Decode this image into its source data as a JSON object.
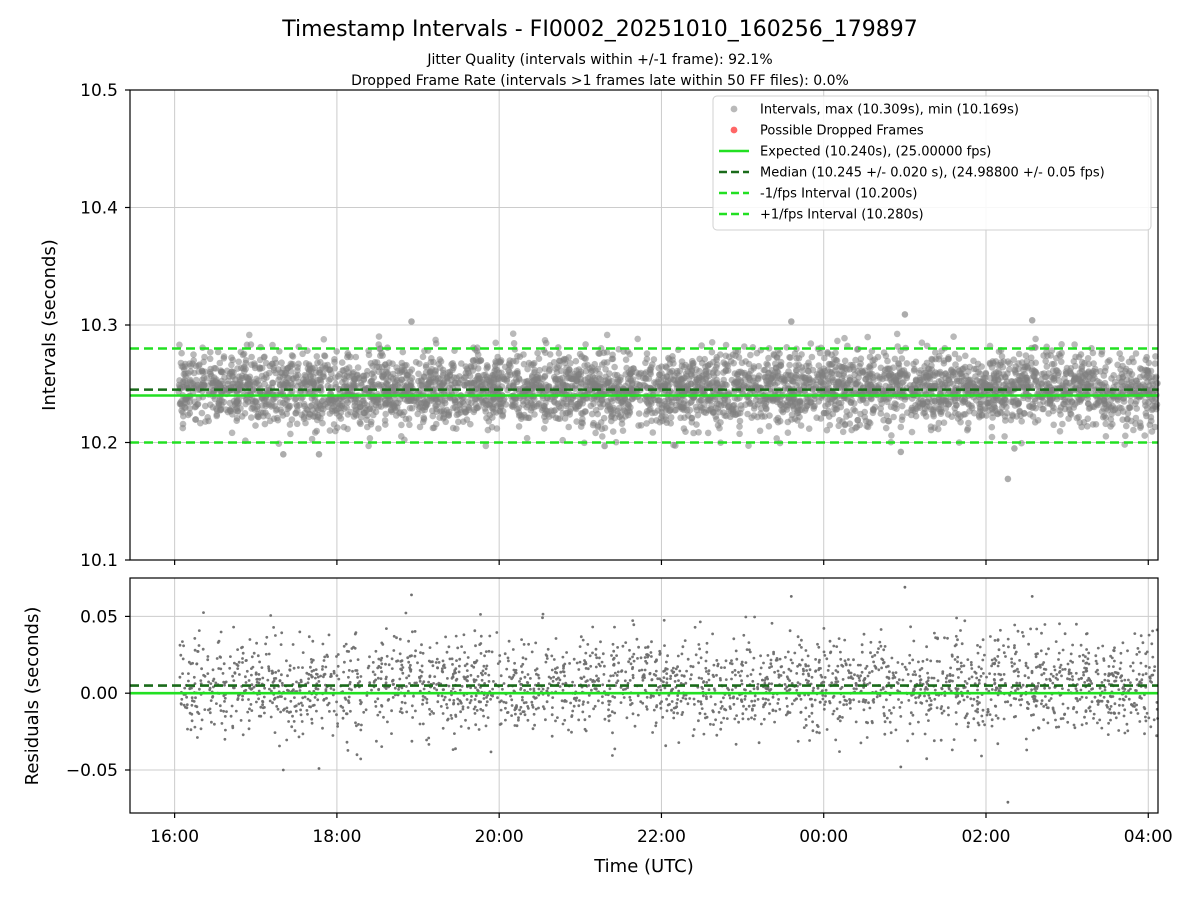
{
  "figure": {
    "title": "Timestamp Intervals - FI0002_20251010_160256_179897",
    "subtitle_1": "Jitter Quality (intervals within +/-1 frame): 92.1%",
    "subtitle_2": "Dropped Frame Rate (intervals >1 frames late within 50 FF files): 0.0%"
  },
  "colors": {
    "points_top": "#808080",
    "points_bottom": "#6e6e6e",
    "dropped": "#ff6666",
    "expected": "#22e022",
    "median": "#1a6b1a",
    "fps_bounds": "#22e022",
    "grid": "#cccccc",
    "axis": "#000000"
  },
  "chart_data": [
    {
      "id": "intervals",
      "type": "scatter",
      "xlabel": "",
      "ylabel": "Intervals (seconds)",
      "xlim": [
        15.45,
        28.12
      ],
      "ylim": [
        10.1,
        10.5
      ],
      "x_tick_values": [
        16,
        18,
        20,
        22,
        24,
        26,
        28
      ],
      "x_tick_labels": [
        "",
        "",
        "",
        "",
        "",
        "",
        ""
      ],
      "y_tick_values": [
        10.1,
        10.2,
        10.3,
        10.4,
        10.5
      ],
      "y_tick_labels": [
        "10.1",
        "10.2",
        "10.3",
        "10.4",
        "10.5"
      ],
      "grid": true,
      "series_stats": {
        "count": 4200,
        "x_start": 16.05,
        "x_end": 28.12,
        "center": 10.245,
        "spread": 0.02,
        "max": 10.309,
        "min": 10.169
      },
      "outliers": [
        {
          "x": 17.34,
          "y": 10.19
        },
        {
          "x": 17.78,
          "y": 10.19
        },
        {
          "x": 18.92,
          "y": 10.303
        },
        {
          "x": 25.0,
          "y": 10.309
        },
        {
          "x": 24.95,
          "y": 10.192
        },
        {
          "x": 26.27,
          "y": 10.169
        },
        {
          "x": 26.57,
          "y": 10.304
        },
        {
          "x": 26.35,
          "y": 10.195
        },
        {
          "x": 23.6,
          "y": 10.303
        },
        {
          "x": 21.3,
          "y": 10.197
        }
      ],
      "lines": [
        {
          "name": "expected",
          "y": 10.24,
          "style": "solid"
        },
        {
          "name": "median",
          "y": 10.245,
          "style": "dashed"
        },
        {
          "name": "minus_fps",
          "y": 10.2,
          "style": "dashed"
        },
        {
          "name": "plus_fps",
          "y": 10.28,
          "style": "dashed"
        }
      ],
      "legend": {
        "placement": "top-right",
        "entries": [
          {
            "label": "Intervals, max (10.309s), min (10.169s)",
            "kind": "marker",
            "color_key": "points_top"
          },
          {
            "label": "Possible Dropped Frames",
            "kind": "marker",
            "color_key": "dropped"
          },
          {
            "label": "Expected (10.240s), (25.00000 fps)",
            "kind": "solid",
            "color_key": "expected"
          },
          {
            "label": "Median (10.245 +/- 0.020 s), (24.98800 +/- 0.05 fps)",
            "kind": "dashed",
            "color_key": "median"
          },
          {
            "label": "-1/fps Interval (10.200s)",
            "kind": "dashed",
            "color_key": "fps_bounds"
          },
          {
            "label": "+1/fps Interval (10.280s)",
            "kind": "dashed",
            "color_key": "fps_bounds"
          }
        ]
      }
    },
    {
      "id": "residuals",
      "type": "scatter",
      "xlabel": "Time (UTC)",
      "ylabel": "Residuals (seconds)",
      "xlim": [
        15.45,
        28.12
      ],
      "ylim": [
        -0.078,
        0.075
      ],
      "x_tick_values": [
        16,
        18,
        20,
        22,
        24,
        26,
        28
      ],
      "x_tick_labels": [
        "16:00",
        "18:00",
        "20:00",
        "22:00",
        "00:00",
        "02:00",
        "04:00"
      ],
      "y_tick_values": [
        -0.05,
        0.0,
        0.05
      ],
      "y_tick_labels": [
        "−0.05",
        "0.00",
        "0.05"
      ],
      "grid": true,
      "series_stats": {
        "count": 2600,
        "x_start": 16.05,
        "x_end": 28.12,
        "center": 0.005,
        "spread": 0.02
      },
      "outliers": [
        {
          "x": 17.34,
          "y": -0.05
        },
        {
          "x": 17.78,
          "y": -0.049
        },
        {
          "x": 18.92,
          "y": 0.064
        },
        {
          "x": 25.0,
          "y": 0.069
        },
        {
          "x": 24.95,
          "y": -0.048
        },
        {
          "x": 26.27,
          "y": -0.071
        },
        {
          "x": 26.57,
          "y": 0.063
        },
        {
          "x": 23.6,
          "y": 0.063
        }
      ],
      "lines": [
        {
          "name": "expected",
          "y": 0.0,
          "style": "solid"
        },
        {
          "name": "median",
          "y": 0.005,
          "style": "dashed"
        }
      ]
    }
  ]
}
